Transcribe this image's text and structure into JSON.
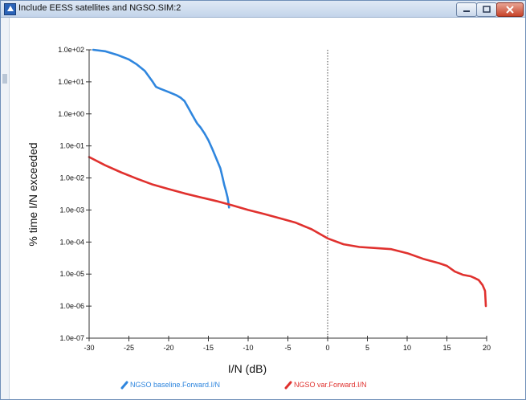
{
  "window": {
    "title": "Include EESS satellites and NGSO.SIM:2"
  },
  "colors": {
    "series_baseline": "#2f86de",
    "series_var": "#e0312e",
    "axis": "#333333",
    "refline": "#444444"
  },
  "chart_data": {
    "type": "line",
    "title": "",
    "xlabel": "I/N (dB)",
    "ylabel": "% time I/N exceeded",
    "x_scale": "linear",
    "y_scale": "log",
    "xlim": [
      -30,
      20
    ],
    "ylim": [
      1e-07,
      100
    ],
    "x_ticks": [
      -30,
      -25,
      -20,
      -15,
      -10,
      -5,
      0,
      5,
      10,
      15,
      20
    ],
    "y_ticks": [
      1e-07,
      1e-06,
      1e-05,
      0.0001,
      0.001,
      0.01,
      0.1,
      1,
      10,
      100
    ],
    "x_tick_labels": [
      "-30",
      "-25",
      "-20",
      "-15",
      "-10",
      "-5",
      "0",
      "5",
      "10",
      "15",
      "20"
    ],
    "y_tick_labels": [
      "1.0e-07",
      "1.0e-06",
      "1.0e-05",
      "1.0e-04",
      "1.0e-03",
      "1.0e-02",
      "1.0e-01",
      "1.0e+00",
      "1.0e+01",
      "1.0e+02"
    ],
    "reference_line": {
      "x": 0,
      "style": "dotted"
    },
    "grid": false,
    "legend_position": "bottom",
    "series": [
      {
        "name": "NGSO baseline.Forward.I/N",
        "color": "#2f86de",
        "x": [
          -29.5,
          -28,
          -26.5,
          -25,
          -24,
          -23,
          -22,
          -21.6,
          -21.3,
          -21,
          -20,
          -19,
          -18.5,
          -18,
          -17.5,
          -17,
          -16.6,
          -16.4,
          -16,
          -15.5,
          -15,
          -14.5,
          -14,
          -13.5,
          -13.2,
          -13,
          -12.8,
          -12.6,
          -12.5,
          -12.4
        ],
        "y": [
          100,
          90,
          70,
          50,
          35,
          22,
          10,
          7,
          6.5,
          6,
          4.8,
          3.8,
          3.2,
          2.5,
          1.5,
          0.9,
          0.6,
          0.5,
          0.38,
          0.25,
          0.15,
          0.08,
          0.04,
          0.02,
          0.01,
          0.006,
          0.004,
          0.0025,
          0.0018,
          0.0012
        ]
      },
      {
        "name": "NGSO var.Forward.I/N",
        "color": "#e0312e",
        "x": [
          -30,
          -28,
          -26,
          -24,
          -22,
          -20,
          -18,
          -16,
          -14,
          -12,
          -10,
          -8,
          -6,
          -4,
          -2,
          0,
          2,
          4,
          6,
          8,
          10,
          12,
          14,
          15,
          16,
          17,
          18,
          18.5,
          19,
          19.5,
          19.8,
          19.9
        ],
        "y": [
          0.045,
          0.025,
          0.015,
          0.0095,
          0.0062,
          0.0045,
          0.0033,
          0.0025,
          0.0019,
          0.0014,
          0.001,
          0.00075,
          0.00055,
          0.0004,
          0.00025,
          0.00013,
          8.5e-05,
          7e-05,
          6.5e-05,
          6e-05,
          4.5e-05,
          3e-05,
          2.2e-05,
          1.8e-05,
          1.2e-05,
          9.5e-06,
          8.5e-06,
          7.5e-06,
          6.5e-06,
          4.5e-06,
          3e-06,
          1e-06
        ]
      }
    ]
  }
}
